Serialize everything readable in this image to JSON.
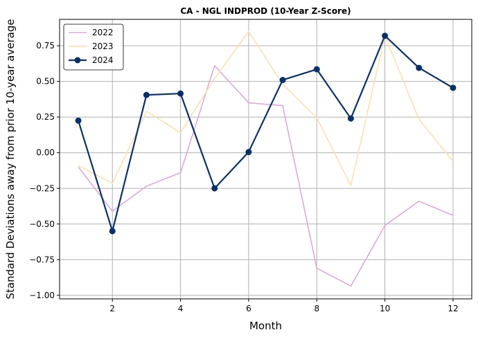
{
  "chart_data": {
    "type": "line",
    "title": "CA - NGL INDPROD (10-Year Z-Score)",
    "xlabel": "Month",
    "ylabel": "Standard Deviations away from prior 10-year average",
    "x": [
      1,
      2,
      3,
      4,
      5,
      6,
      7,
      8,
      9,
      10,
      11,
      12
    ],
    "xlim": [
      0.45,
      12.55
    ],
    "ylim": [
      -1.025,
      0.935
    ],
    "xticks": [
      2,
      4,
      6,
      8,
      10,
      12
    ],
    "yticks": [
      -1.0,
      -0.75,
      -0.5,
      -0.25,
      0.0,
      0.25,
      0.5,
      0.75
    ],
    "xtick_labels": [
      "2",
      "4",
      "6",
      "8",
      "10",
      "12"
    ],
    "ytick_labels": [
      "−1.00",
      "−0.75",
      "−0.50",
      "−0.25",
      "0.00",
      "0.25",
      "0.50",
      "0.75"
    ],
    "grid": true,
    "legend_position": "top-left",
    "series": [
      {
        "name": "2022",
        "color": "#dda8d8",
        "markers": false,
        "values": [
          -0.1,
          -0.41,
          -0.235,
          -0.14,
          0.61,
          0.35,
          0.33,
          -0.81,
          -0.935,
          -0.51,
          -0.34,
          -0.44
        ]
      },
      {
        "name": "2023",
        "color": "#ffe0ad",
        "markers": false,
        "values": [
          -0.09,
          -0.215,
          0.29,
          0.14,
          0.52,
          0.85,
          0.48,
          0.245,
          -0.23,
          0.82,
          0.235,
          -0.06
        ]
      },
      {
        "name": "2024",
        "color": "#08306b",
        "markers": true,
        "values": [
          0.225,
          -0.55,
          0.405,
          0.415,
          -0.25,
          0.005,
          0.51,
          0.585,
          0.24,
          0.82,
          0.595,
          0.455
        ]
      }
    ]
  }
}
